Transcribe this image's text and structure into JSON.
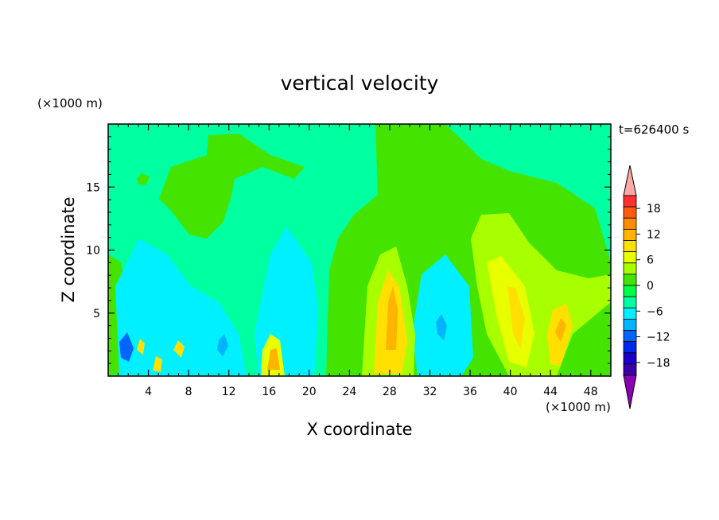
{
  "chart_data": {
    "type": "heatmap",
    "title": "vertical velocity",
    "xlabel": "X coordinate",
    "ylabel": "Z coordinate",
    "x_unit": "(×1000 m)",
    "y_unit": "(×1000 m)",
    "time_label": "t=626400 s",
    "xlim": [
      0,
      50
    ],
    "ylim": [
      0,
      20
    ],
    "x_ticks": [
      4,
      8,
      12,
      16,
      20,
      24,
      28,
      32,
      36,
      40,
      44,
      48
    ],
    "y_ticks": [
      5,
      10,
      15
    ],
    "colorbar": {
      "tick_labels": [
        "18",
        "12",
        "6",
        "0",
        "−6",
        "−12",
        "−18"
      ],
      "tick_values": [
        18,
        12,
        6,
        0,
        -6,
        -12,
        -18
      ],
      "range": [
        -21,
        21
      ],
      "interval": 3,
      "extend": "both",
      "colors_high_to_low": [
        "#ff3030",
        "#ff5a10",
        "#ff8c00",
        "#ffb400",
        "#ffe000",
        "#e8ff00",
        "#a8ff00",
        "#44e400",
        "#00ff44",
        "#00ffa0",
        "#00f0ff",
        "#00b4ff",
        "#0064ff",
        "#0028e8",
        "#1800c8",
        "#3c00a8"
      ],
      "over_color": "#ffa8a8",
      "under_color": "#8c00b4"
    },
    "features": [
      {
        "x": 28.6,
        "z": 5.5,
        "value": 10
      },
      {
        "x": 16.5,
        "z": 1.6,
        "value": 7
      },
      {
        "x": 40.5,
        "z": 6.0,
        "value": 7
      },
      {
        "x": 44.5,
        "z": 3.8,
        "value": 7
      },
      {
        "x": 2.0,
        "z": 2.5,
        "value": -8
      },
      {
        "x": 33.0,
        "z": 4.5,
        "value": -7
      },
      {
        "x": 11.5,
        "z": 2.5,
        "value": -6
      }
    ]
  }
}
